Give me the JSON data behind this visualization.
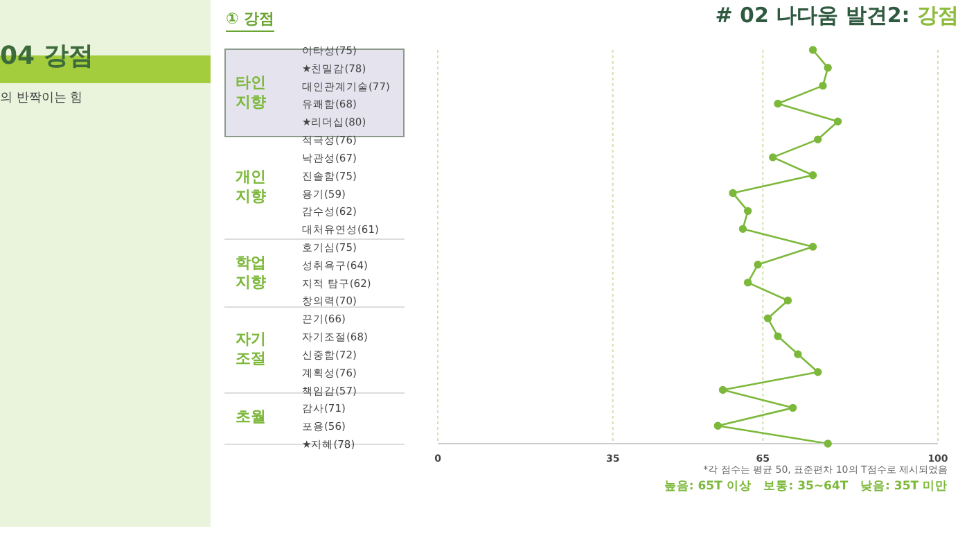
{
  "chart_data": {
    "type": "line",
    "orientation": "horizontal",
    "title": "# 02 나다움 발견2: 강점",
    "subtitle": "① 강점",
    "categories": [
      "이타성(75)",
      "★친밀감(78)",
      "대인관계기술(77)",
      "유쾌함(68)",
      "★리더십(80)",
      "적극성(76)",
      "낙관성(67)",
      "진솔함(75)",
      "용기(59)",
      "감수성(62)",
      "대처유연성(61)",
      "호기심(75)",
      "성취욕구(64)",
      "지적 탐구(62)",
      "창의력(70)",
      "끈기(66)",
      "자기조절(68)",
      "신중함(72)",
      "계획성(76)",
      "책임감(57)",
      "감사(71)",
      "포용(56)",
      "★지혜(78)"
    ],
    "series": [
      {
        "color": "#7cb83a",
        "values": [
          75,
          78,
          77,
          68,
          80,
          76,
          67,
          75,
          59,
          62,
          61,
          75,
          64,
          62,
          70,
          66,
          68,
          72,
          76,
          57,
          71,
          56,
          78
        ]
      }
    ],
    "xlim": [
      0,
      100
    ],
    "xticks": [
      0,
      35,
      65,
      100
    ],
    "grid": "x",
    "marker": "circle",
    "annotations": [
      "*각 점수는 평균 50, 표준편차 10의 T점수로 제시되었음",
      "높음: 65T 이상   보통: 35~64T   낮음: 35T 미만",
      "04 강점",
      "의 반짝이는 힘",
      "타인\n지향",
      "개인\n지향",
      "학업\n지향",
      "자기\n조절",
      "초월"
    ]
  }
}
